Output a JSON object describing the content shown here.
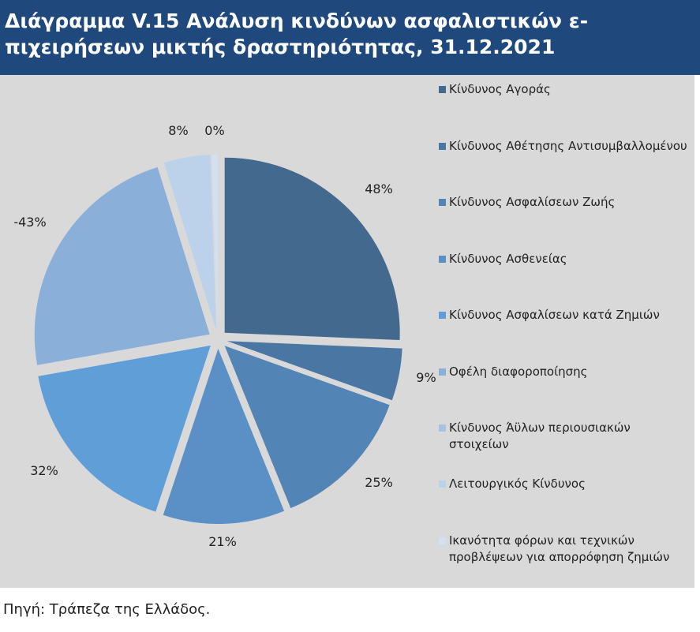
{
  "title": "Διάγραμμα V.15 Ανάλυση κινδύνων ασφαλιστικών ε-πιχειρήσεων μικτής δραστηριότητας, 31.12.2021",
  "source": "Πηγή: Τράπεζα της Ελλάδος.",
  "chart_data": {
    "type": "pie",
    "title": "Διάγραμμα V.15 Ανάλυση κινδύνων ασφαλιστικών ε-πιχειρήσεων μικτής δραστηριότητας, 31.12.2021",
    "legend_position": "right",
    "slices": [
      {
        "name": "Κίνδυνος Αγοράς",
        "value": 48,
        "label": "48%",
        "color": "#44698f"
      },
      {
        "name": "Κίνδυνος Αθέτησης Αντισυμβαλλομένου",
        "value": 9,
        "label": "9%",
        "color": "#4a76a3"
      },
      {
        "name": "Κίνδυνος Ασφαλίσεων Ζωής",
        "value": 25,
        "label": "25%",
        "color": "#5384b6"
      },
      {
        "name": "Κίνδυνος Ασθενείας",
        "value": 21,
        "label": "21%",
        "color": "#5a90c5"
      },
      {
        "name": "Κίνδυνος Ασφαλίσεων κατά Ζημιών",
        "value": 32,
        "label": "32%",
        "color": "#609ed7"
      },
      {
        "name": "Οφέλη διαφοροποίησης",
        "value": -43,
        "label": "-43%",
        "color": "#8aafd9"
      },
      {
        "name": "Κίνδυνος Άϋλων περιουσιακών στοιχείων",
        "value": 0,
        "label": null,
        "color": "#a7c3e3"
      },
      {
        "name": "Λειτουργικός Κίνδυνος",
        "value": 8,
        "label": "8%",
        "color": "#bcd2eb"
      },
      {
        "name": "Ικανότητα φόρων και τεχνικών προβλέψεων για απορρόφηση ζημιών",
        "value": 0,
        "label": "0%",
        "color": "#d2e0f1"
      }
    ]
  }
}
